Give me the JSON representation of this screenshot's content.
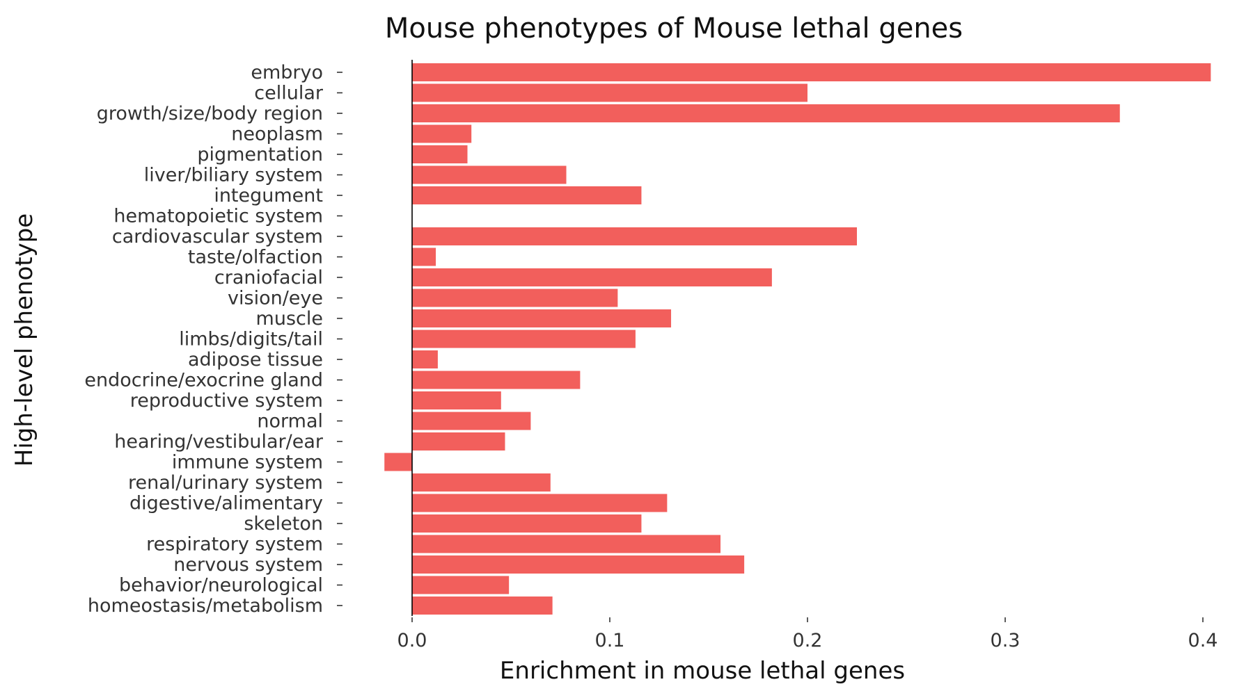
{
  "chart_data": {
    "type": "bar",
    "orientation": "horizontal",
    "title": "Mouse phenotypes of Mouse lethal genes",
    "xlabel": "Enrichment in mouse lethal genes",
    "ylabel": "High-level phenotype",
    "xlim": [
      -0.015,
      0.405
    ],
    "xticks": [
      0.0,
      0.1,
      0.2,
      0.3,
      0.4
    ],
    "xtick_labels": [
      "0.0",
      "0.1",
      "0.2",
      "0.3",
      "0.4"
    ],
    "grid": false,
    "bar_color": "#f25f5c",
    "categories": [
      "embryo",
      "cellular",
      "growth/size/body region",
      "neoplasm",
      "pigmentation",
      "liver/biliary system",
      "integument",
      "hematopoietic system",
      "cardiovascular system",
      "taste/olfaction",
      "craniofacial",
      "vision/eye",
      "muscle",
      "limbs/digits/tail",
      "adipose tissue",
      "endocrine/exocrine gland",
      "reproductive system",
      "normal",
      "hearing/vestibular/ear",
      "immune system",
      "renal/urinary system",
      "digestive/alimentary",
      "skeleton",
      "respiratory system",
      "nervous system",
      "behavior/neurological",
      "homeostasis/metabolism"
    ],
    "values": [
      0.404,
      0.2,
      0.358,
      0.03,
      0.028,
      0.078,
      0.116,
      0.0,
      0.225,
      0.012,
      0.182,
      0.104,
      0.131,
      0.113,
      0.013,
      0.085,
      0.045,
      0.06,
      0.047,
      -0.014,
      0.07,
      0.129,
      0.116,
      0.156,
      0.168,
      0.049,
      0.071
    ]
  }
}
